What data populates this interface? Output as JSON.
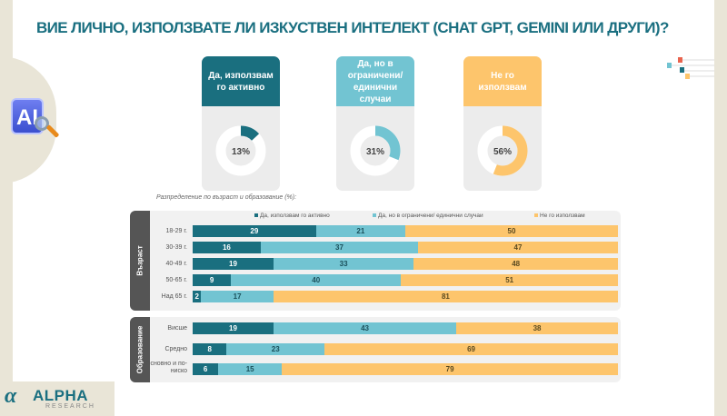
{
  "title": "ВИЕ ЛИЧНО, ИЗПОЛЗВАТЕ ЛИ ИЗКУСТВЕН ИНТЕЛЕКТ (CHAT GPT, GEMINI ИЛИ ДРУГИ)?",
  "ai_icon": "AI",
  "logo": {
    "name": "ALPHA",
    "sub": "RESEARCH"
  },
  "colors": {
    "active": "#1a6f7f",
    "limited": "#72c4d2",
    "no": "#fdc56c"
  },
  "cards": [
    {
      "label": "Да, използвам го активно",
      "value": 13,
      "display": "13%",
      "color": "#1a6f7f"
    },
    {
      "label": "Да, но в ограничени/ единични случаи",
      "value": 31,
      "display": "31%",
      "color": "#72c4d2"
    },
    {
      "label": "Не го използвам",
      "value": 56,
      "display": "56%",
      "color": "#fdc56c"
    }
  ],
  "chart_data": {
    "type": "bar",
    "stacked": true,
    "orientation": "horizontal",
    "subtitle": "Разпределение по възраст и образование (%):",
    "legend": [
      "Да, използвам го активно",
      "Да, но в ограничени/ единични случаи",
      "Не го използвам"
    ],
    "legend_position": "top",
    "groups": [
      {
        "name": "Възраст",
        "categories": [
          "18-29 г.",
          "30-39 г.",
          "40-49 г.",
          "50-65 г.",
          "Над 65 г."
        ],
        "series": [
          {
            "name": "Да, използвам го активно",
            "values": [
              29,
              16,
              19,
              9,
              2
            ]
          },
          {
            "name": "Да, но в ограничени/ единични случаи",
            "values": [
              21,
              37,
              33,
              40,
              17
            ]
          },
          {
            "name": "Не го използвам",
            "values": [
              50,
              47,
              48,
              51,
              81
            ]
          }
        ]
      },
      {
        "name": "Образование",
        "categories": [
          "Висше",
          "Средно",
          "Основно и по-ниско"
        ],
        "series": [
          {
            "name": "Да, използвам го активно",
            "values": [
              19,
              8,
              6
            ]
          },
          {
            "name": "Да, но в ограничени/ единични случаи",
            "values": [
              43,
              23,
              15
            ]
          },
          {
            "name": "Не го използвам",
            "values": [
              38,
              69,
              79
            ]
          }
        ]
      }
    ]
  }
}
